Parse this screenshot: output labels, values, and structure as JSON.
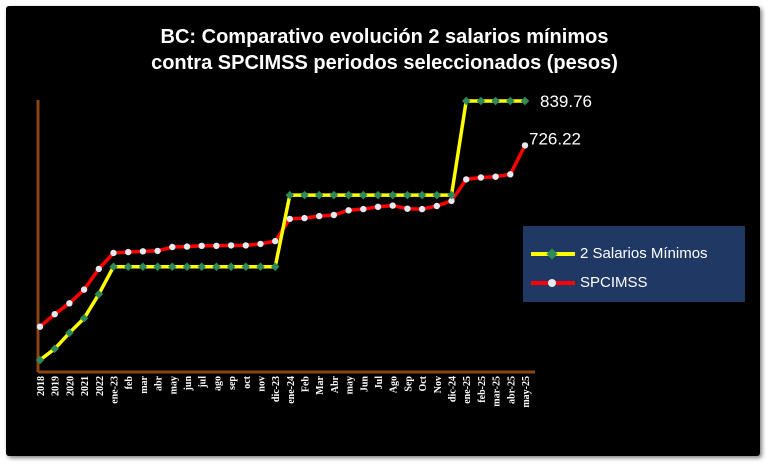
{
  "chart_data": {
    "type": "line",
    "title": "BC: Comparativo evolución 2 salarios mínimos",
    "subtitle": "contra SPCIMSS periodos seleccionados (pesos)",
    "categories": [
      "2018",
      "2019",
      "2020",
      "2021",
      "2022",
      "ene-23",
      "feb",
      "mar",
      "abr",
      "may",
      "jun",
      "jul",
      "ago",
      "sep",
      "oct",
      "nov",
      "dic-23",
      "ene-24",
      "Feb",
      "Mar",
      "Abr",
      "may",
      "Jun",
      "Jul",
      "Ago",
      "Sep",
      "Oct",
      "Nov",
      "dic-24",
      "ene-25",
      "feb-25",
      "mar-25",
      "abr-25",
      "may-25"
    ],
    "series": [
      {
        "name": "2 Salarios Mínimos",
        "color": "#ffff00",
        "marker_color": "#2e8b57",
        "values": [
          176.72,
          205.36,
          246.16,
          283.58,
          345.12,
          415.32,
          415.32,
          415.32,
          415.32,
          415.32,
          415.32,
          415.32,
          415.32,
          415.32,
          415.32,
          415.32,
          415.32,
          598.8,
          598.8,
          598.8,
          598.8,
          598.8,
          598.8,
          598.8,
          598.8,
          598.8,
          598.8,
          598.8,
          598.8,
          839.76,
          839.76,
          839.76,
          839.76,
          839.76
        ]
      },
      {
        "name": "SPCIMSS",
        "color": "#ff0000",
        "marker_color": "#e8e8f0",
        "values": [
          262.0,
          294.0,
          322.0,
          357.0,
          410.0,
          451.0,
          453.0,
          455.0,
          456.0,
          466.0,
          467.0,
          469.0,
          469.0,
          470.0,
          470.0,
          474.0,
          481.0,
          538.0,
          540.0,
          545.0,
          548.0,
          560.0,
          563.0,
          569.0,
          572.0,
          564.0,
          563.0,
          571.0,
          584.0,
          639.0,
          644.0,
          646.0,
          652.0,
          726.22
        ]
      }
    ],
    "end_labels": [
      "839.76",
      "726.22"
    ],
    "legend": {
      "position": "right"
    },
    "grid": false,
    "colors": {
      "background": "#000000",
      "axis": "#8b4513",
      "legend_bg": "#1f3864",
      "text": "#ffffff"
    }
  }
}
